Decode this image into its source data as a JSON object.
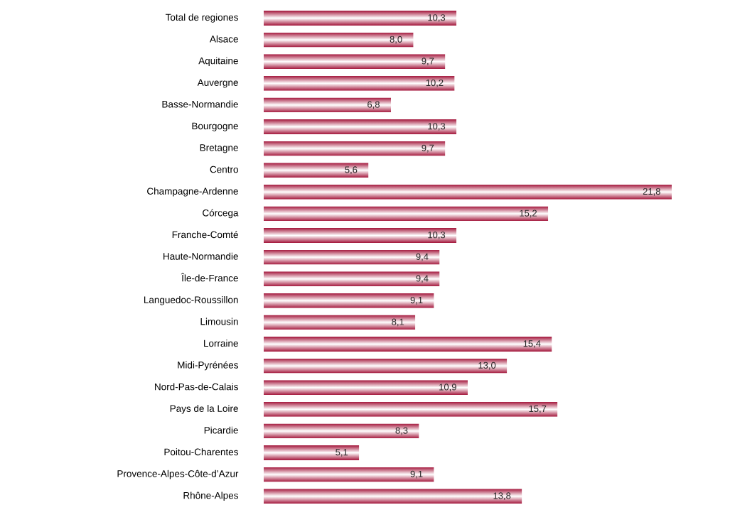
{
  "chart_data": {
    "type": "bar",
    "orientation": "horizontal",
    "color": "#a3153a",
    "categories": [
      "Total de regiones",
      "Alsace",
      "Aquitaine",
      "Auvergne",
      "Basse-Normandie",
      "Bourgogne",
      "Bretagne",
      "Centro",
      "Champagne-Ardenne",
      "Córcega",
      "Franche-Comté",
      "Haute-Normandie",
      "Île-de-France",
      "Languedoc-Roussillon",
      "Limousin",
      "Lorraine",
      "Midi-Pyrénées",
      "Nord-Pas-de-Calais",
      "Pays de la Loire",
      "Picardie",
      "Poitou-Charentes",
      "Provence-Alpes-Côte-d’Azur",
      "Rhône-Alpes"
    ],
    "values": [
      10.3,
      8.0,
      9.7,
      10.2,
      6.8,
      10.3,
      9.7,
      5.6,
      21.8,
      15.2,
      10.3,
      9.4,
      9.4,
      9.1,
      8.1,
      15.4,
      13.0,
      10.9,
      15.7,
      8.3,
      5.1,
      9.1,
      13.8
    ],
    "value_labels": [
      "10,3",
      "8,0",
      "9,7",
      "10,2",
      "6,8",
      "10,3",
      "9,7",
      "5,6",
      "21,8",
      "15,2",
      "10,3",
      "9,4",
      "9,4",
      "9,1",
      "8,1",
      "15,4",
      "13,0",
      "10,9",
      "15,7",
      "8,3",
      "5,1",
      "9,1",
      "13,8"
    ]
  }
}
